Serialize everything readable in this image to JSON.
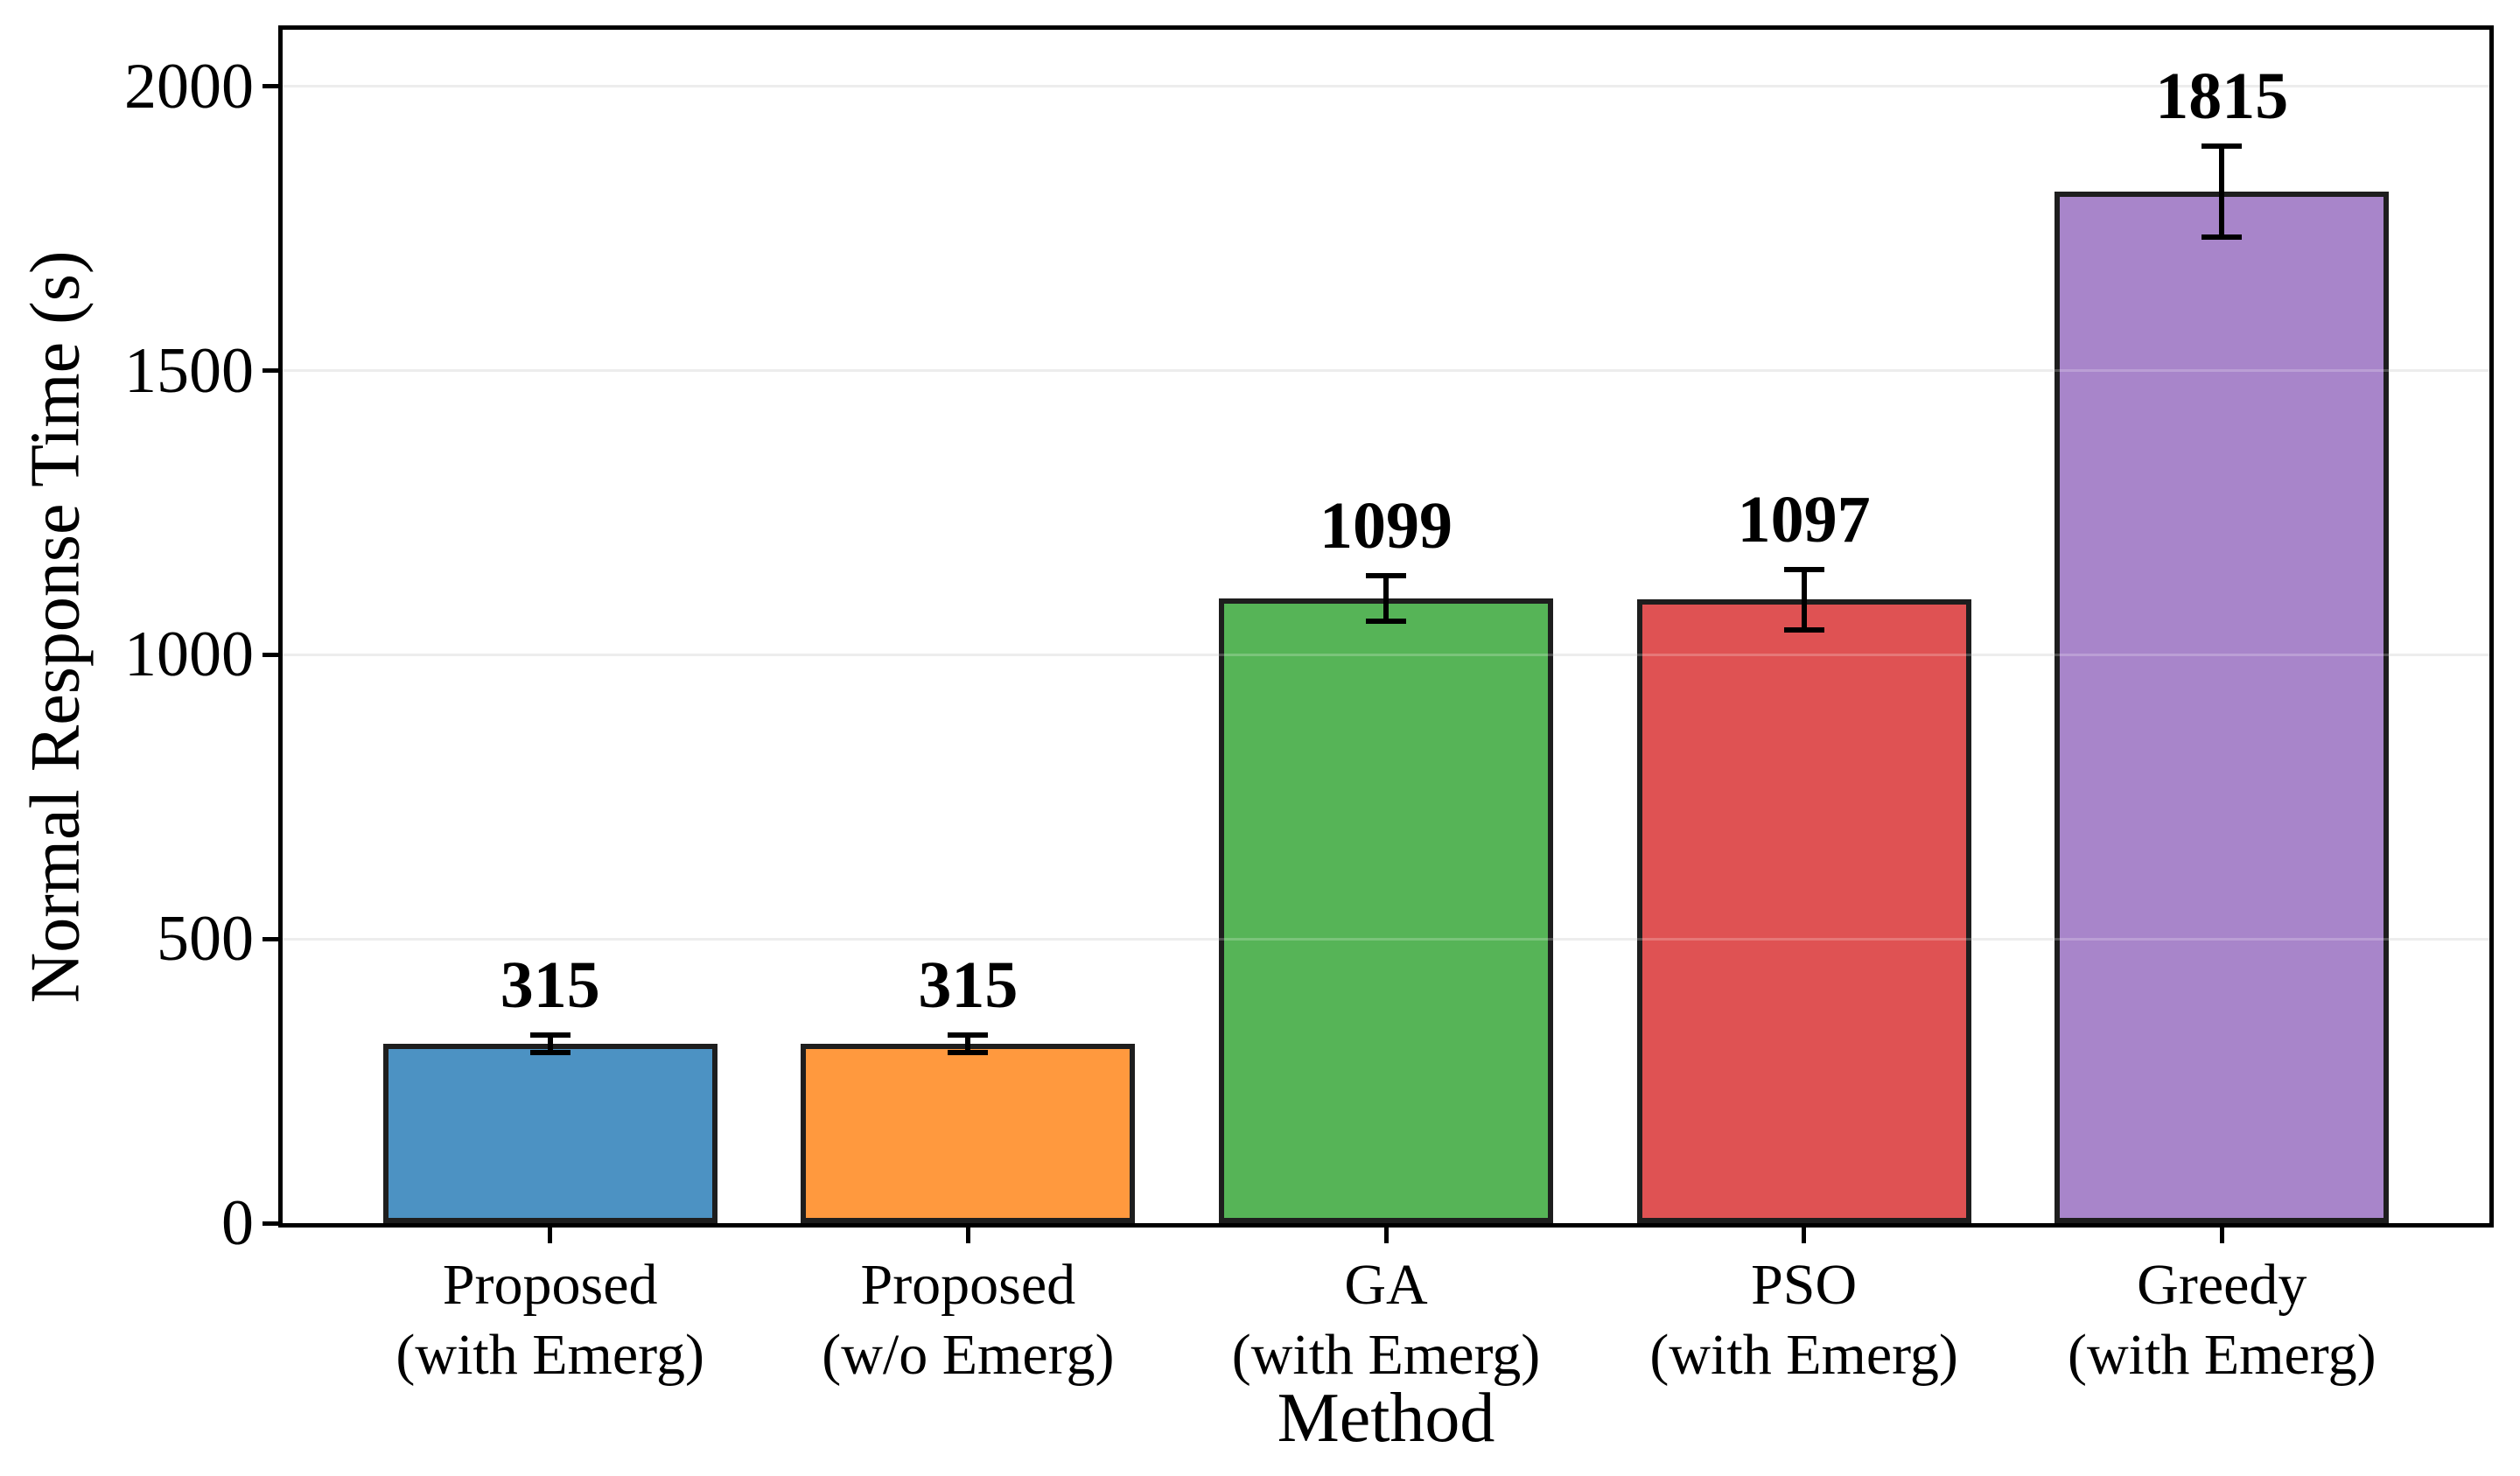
{
  "chart_data": {
    "type": "bar",
    "title": "",
    "xlabel": "Method",
    "ylabel": "Normal Response Time (s)",
    "categories": [
      [
        "Proposed",
        "(with Emerg)"
      ],
      [
        "Proposed",
        "(w/o Emerg)"
      ],
      [
        "GA",
        "(with Emerg)"
      ],
      [
        "PSO",
        "(with Emerg)"
      ],
      [
        "Greedy",
        "(with Emerg)"
      ]
    ],
    "values": [
      315,
      315,
      1099,
      1097,
      1815
    ],
    "errors": [
      20,
      20,
      45,
      58,
      85
    ],
    "bar_labels": [
      "315",
      "315",
      "1099",
      "1097",
      "1815"
    ],
    "bar_colors": [
      "#4C92C3",
      "#FF993E",
      "#56B457",
      "#DF5253",
      "#A885CA"
    ],
    "bar_edge_color": "#1e1e1e",
    "ylim": [
      0,
      2100
    ],
    "yticks": [
      0,
      500,
      1000,
      1500,
      2000
    ],
    "grid": "horizontal",
    "grid_color": "#e8e8e8",
    "legend": "none"
  }
}
